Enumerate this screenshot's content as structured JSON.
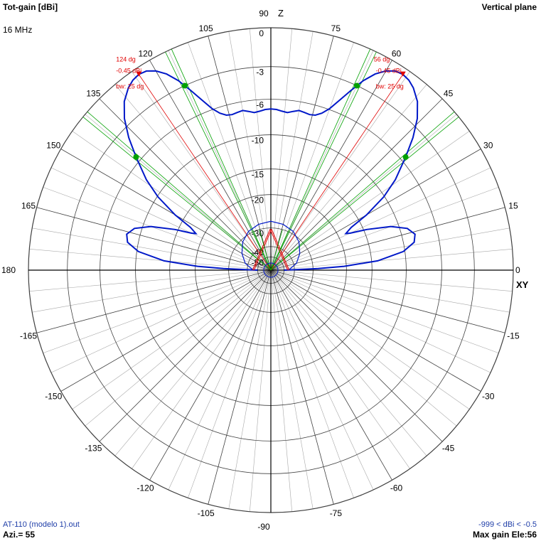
{
  "header": {
    "title": "Tot-gain [dBi]",
    "frequency": "16 MHz",
    "plane": "Vertical plane"
  },
  "footer": {
    "file": "AT-110 (modelo 1).out",
    "azimuth": "Azi.= 55",
    "range": "-999 < dBi < -0.5",
    "max_gain": "Max gain Ele:56"
  },
  "chart_data": {
    "type": "polar",
    "axis_labels": {
      "vertical": "Z",
      "horizontal": "XY"
    },
    "angle_ticks_deg": [
      0,
      15,
      30,
      45,
      60,
      75,
      90,
      105,
      120,
      135,
      150,
      165,
      180,
      -165,
      -150,
      -135,
      -120,
      -105,
      -90,
      -75,
      -60,
      -45,
      -30,
      -15
    ],
    "radial_scale": {
      "type": "arrl",
      "max_dbi": -0.45,
      "ticks_db": [
        0,
        -3,
        -6,
        -10,
        -15,
        -20,
        -30,
        -40,
        -50
      ]
    },
    "colors": {
      "pattern": "#0018c8",
      "beam_width": "#00a000",
      "max_marker": "#e00000",
      "grid": "#a8a8a8",
      "grid_major": "#404040"
    },
    "series": [
      {
        "elevation_deg": [
          0,
          1,
          2,
          3,
          5,
          8,
          11,
          14,
          17,
          20,
          23,
          25,
          26,
          28,
          30,
          33,
          36,
          40,
          43,
          46,
          49,
          52,
          54,
          56,
          58,
          60,
          62,
          64,
          66,
          68,
          70,
          72,
          74,
          76,
          78,
          80,
          82,
          84,
          86,
          88,
          90,
          92,
          94,
          96,
          98,
          100,
          102,
          104,
          106,
          108,
          110,
          112,
          114,
          116,
          118,
          120,
          122,
          124,
          126,
          128,
          131,
          134,
          137,
          140,
          144,
          147,
          150,
          152,
          154,
          155,
          157,
          160,
          163,
          166,
          169,
          172,
          175,
          177,
          178,
          179,
          180
        ],
        "gain_db": [
          -50,
          -40,
          -28,
          -20.5,
          -14,
          -10.2,
          -8.7,
          -8.4,
          -9.1,
          -11,
          -14.5,
          -17.5,
          -18.3,
          -16.8,
          -13.5,
          -10.1,
          -7.8,
          -5.5,
          -3.8,
          -2.4,
          -1.4,
          -0.8,
          -0.55,
          -0.45,
          -0.55,
          -0.9,
          -1.5,
          -2.4,
          -3.6,
          -4.8,
          -5.9,
          -6.6,
          -7,
          -7.1,
          -7,
          -6.9,
          -7.1,
          -7.3,
          -7.2,
          -7.05,
          -7,
          -7.05,
          -7.2,
          -7.3,
          -7.1,
          -6.9,
          -7,
          -7.1,
          -7,
          -6.6,
          -5.9,
          -4.8,
          -3.6,
          -2.4,
          -1.5,
          -0.9,
          -0.55,
          -0.45,
          -0.55,
          -0.8,
          -1.4,
          -2.4,
          -3.8,
          -5.5,
          -7.8,
          -10.1,
          -13.5,
          -16.8,
          -18.3,
          -17.5,
          -14.5,
          -11,
          -9.1,
          -8.4,
          -8.7,
          -10.2,
          -14,
          -20.5,
          -28,
          -40,
          -50
        ]
      },
      {
        "elevation_deg": [
          0,
          15,
          30,
          45,
          60,
          75,
          90,
          105,
          120,
          135,
          150,
          165,
          180
        ],
        "gain_db": [
          -45,
          -38,
          -34,
          -31,
          -29,
          -28,
          -27.5,
          -28,
          -29,
          -31,
          -34,
          -38,
          -45
        ]
      }
    ],
    "max_markers": [
      {
        "angle_deg": 56,
        "gain_db": -0.45,
        "label_angle": "56 dg",
        "label_gain": "-0.45 dBi",
        "label_bw": "bw: 25 dg"
      },
      {
        "angle_deg": 124,
        "gain_db": -0.45,
        "label_angle": "124 dg",
        "label_gain": "-0.45 dBi",
        "label_bw": "bw: 25 dg"
      }
    ],
    "beam_width_lines_deg": [
      40,
      65,
      115,
      140
    ],
    "ground_lines_deg": [
      66,
      74,
      106,
      114
    ]
  }
}
